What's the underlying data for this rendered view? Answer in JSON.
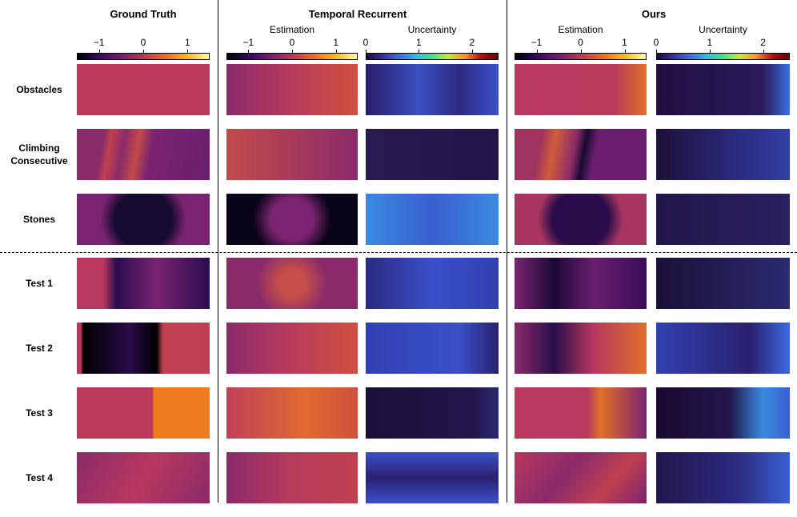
{
  "figure": {
    "groups": [
      {
        "title": "Ground Truth",
        "panels": [
          {
            "colorbar": {
              "colormap": "inferno",
              "lim": [
                -1.5,
                1.5
              ],
              "ticks": [
                {
                  "value": -1,
                  "label": "−1"
                },
                0,
                1
              ]
            }
          }
        ]
      },
      {
        "title": "Temporal Recurrent",
        "panels": [
          {
            "label": "Estimation",
            "colorbar": {
              "colormap": "inferno",
              "lim": [
                -1.5,
                1.5
              ],
              "ticks": [
                {
                  "value": -1,
                  "label": "−1"
                },
                0,
                1
              ]
            }
          },
          {
            "label": "Uncertainty",
            "colorbar": {
              "colormap": "turbo",
              "lim": [
                0,
                2.5
              ],
              "ticks": [
                0,
                1,
                2
              ]
            }
          }
        ]
      },
      {
        "title": "Ours",
        "panels": [
          {
            "label": "Estimation",
            "colorbar": {
              "colormap": "inferno",
              "lim": [
                -1.5,
                1.5
              ],
              "ticks": [
                {
                  "value": -1,
                  "label": "−1"
                },
                0,
                1
              ]
            }
          },
          {
            "label": "Uncertainty",
            "colorbar": {
              "colormap": "turbo",
              "lim": [
                0,
                2.5
              ],
              "ticks": [
                0,
                1,
                2
              ]
            }
          }
        ]
      }
    ],
    "rows": [
      "Obstacles",
      "Climbing Consecutive",
      "Stones",
      "Test 1",
      "Test 2",
      "Test 3",
      "Test 4"
    ]
  }
}
